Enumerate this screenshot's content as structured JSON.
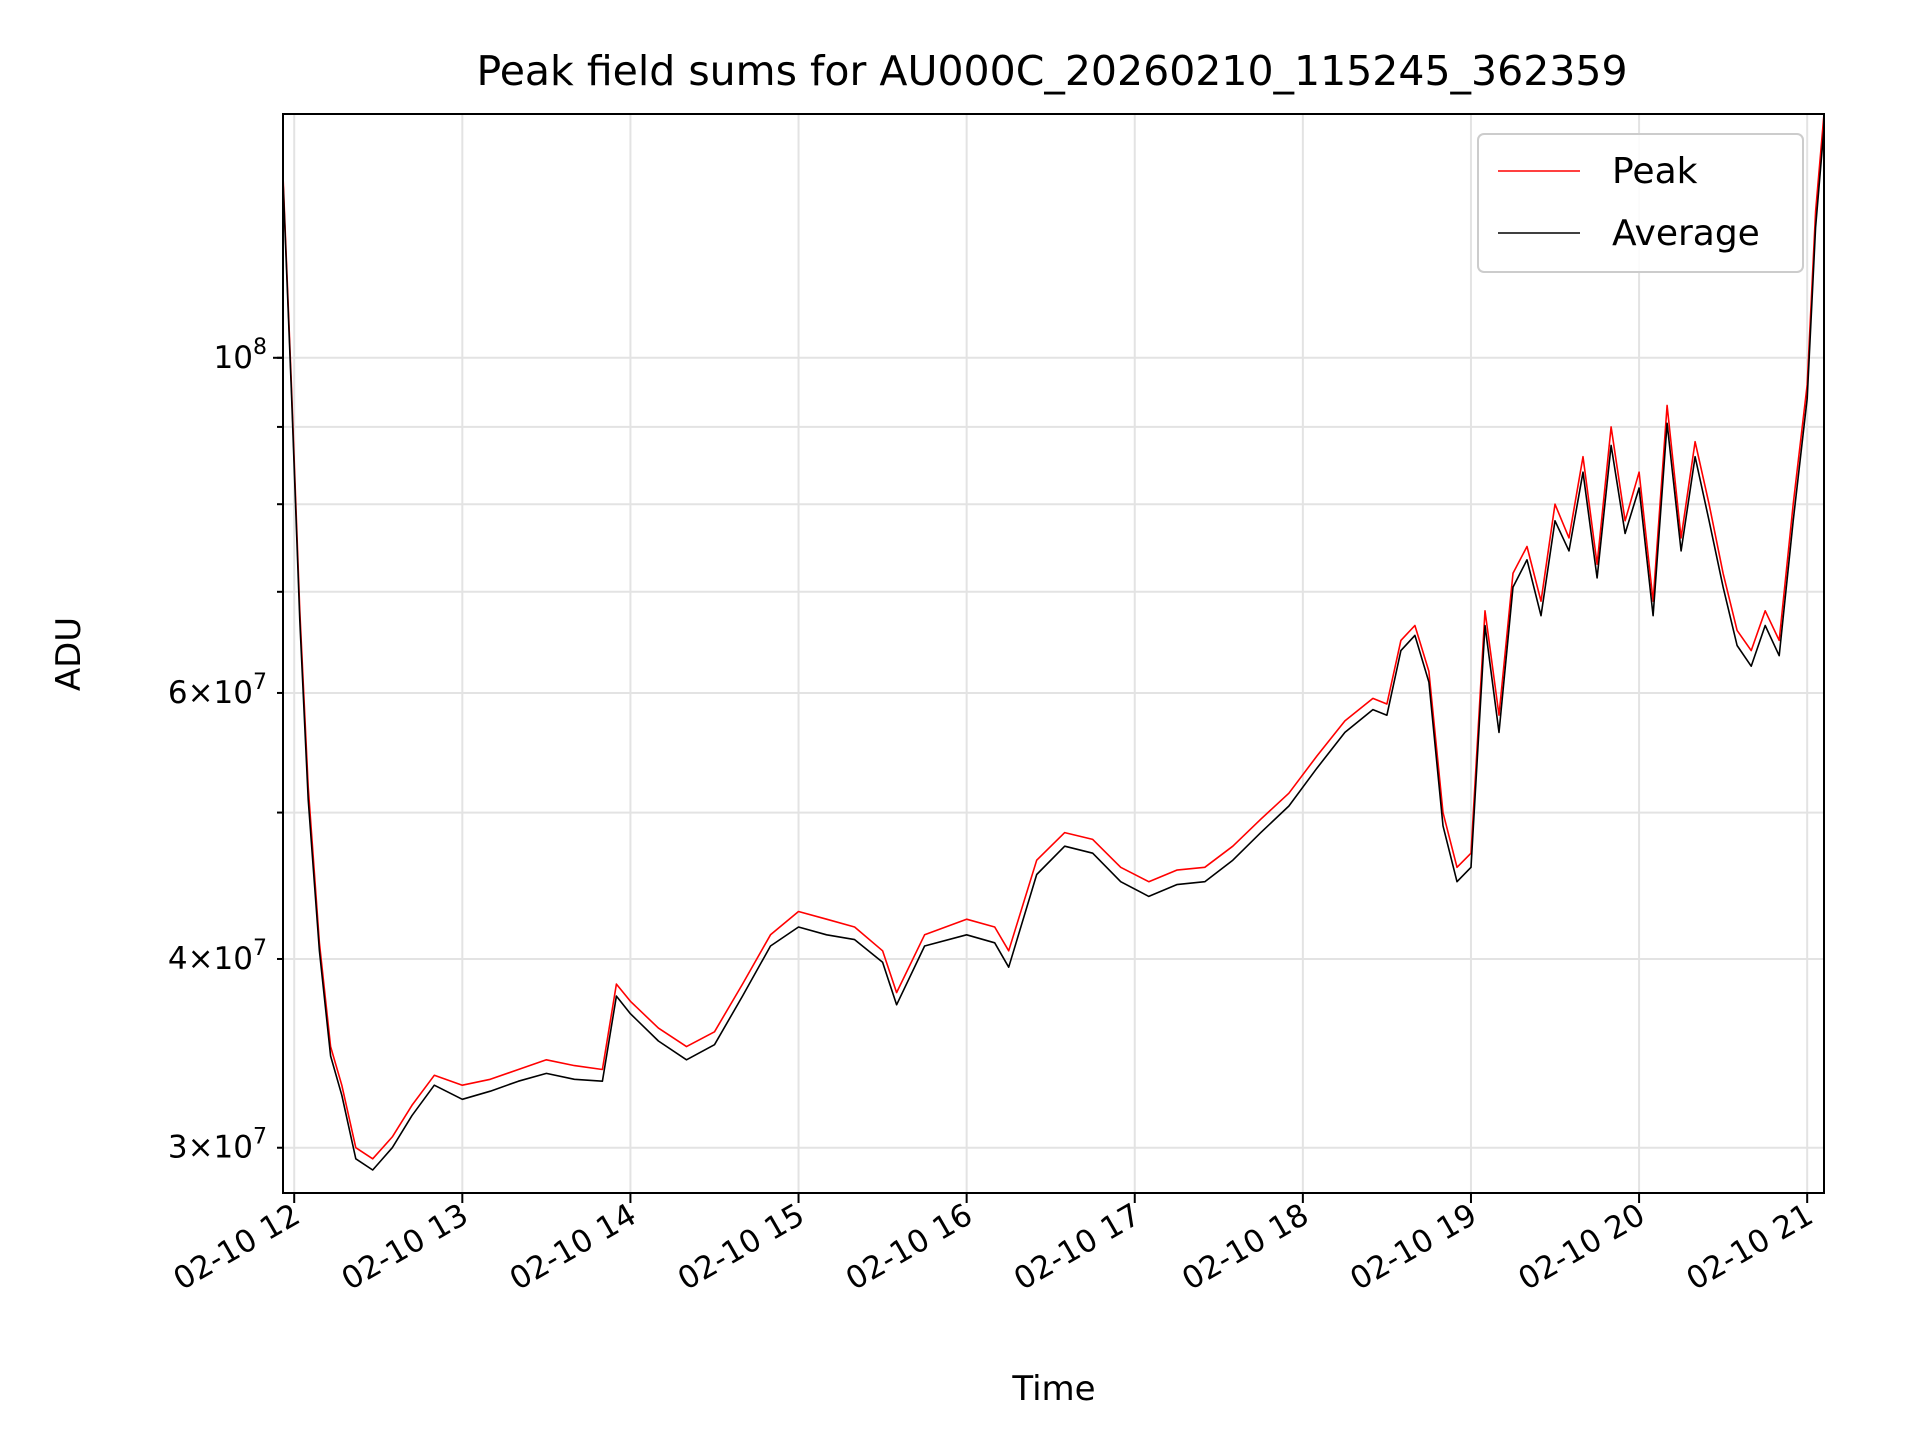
{
  "chart_data": {
    "type": "line",
    "title": "Peak field sums for AU000C_20260210_115245_362359",
    "xlabel": "Time",
    "ylabel": "ADU",
    "yscale": "log",
    "ylim": [
      28000000,
      145000000
    ],
    "xlim": [
      "2026-02-10 11:56",
      "2026-02-10 21:06"
    ],
    "grid": true,
    "legend_position": "top-right",
    "x_ticks": [
      {
        "value": "2026-02-10 12:00",
        "label": "02-10 12"
      },
      {
        "value": "2026-02-10 13:00",
        "label": "02-10 13"
      },
      {
        "value": "2026-02-10 14:00",
        "label": "02-10 14"
      },
      {
        "value": "2026-02-10 15:00",
        "label": "02-10 15"
      },
      {
        "value": "2026-02-10 16:00",
        "label": "02-10 16"
      },
      {
        "value": "2026-02-10 17:00",
        "label": "02-10 17"
      },
      {
        "value": "2026-02-10 18:00",
        "label": "02-10 18"
      },
      {
        "value": "2026-02-10 19:00",
        "label": "02-10 19"
      },
      {
        "value": "2026-02-10 20:00",
        "label": "02-10 20"
      },
      {
        "value": "2026-02-10 21:00",
        "label": "02-10 21"
      }
    ],
    "y_major_ticks": [
      {
        "value": 100000000,
        "base": "10",
        "exp": "8"
      }
    ],
    "y_minor_ticks": [
      {
        "value": 30000000,
        "mantissa": "3",
        "base": "10",
        "exp": "7"
      },
      {
        "value": 40000000,
        "mantissa": "4",
        "base": "10",
        "exp": "7"
      },
      {
        "value": 60000000,
        "mantissa": "6",
        "base": "10",
        "exp": "7"
      }
    ],
    "y_gridlines": [
      30000000,
      40000000,
      50000000,
      60000000,
      70000000,
      80000000,
      90000000,
      100000000
    ],
    "series": [
      {
        "name": "Peak",
        "color": "#ff0000",
        "points": [
          [
            "2026-02-10 11:56",
            132000000
          ],
          [
            "2026-02-10 11:59",
            96000000
          ],
          [
            "2026-02-10 12:02",
            68000000
          ],
          [
            "2026-02-10 12:05",
            52000000
          ],
          [
            "2026-02-10 12:09",
            41000000
          ],
          [
            "2026-02-10 12:13",
            35000000
          ],
          [
            "2026-02-10 12:17",
            33000000
          ],
          [
            "2026-02-10 12:22",
            30000000
          ],
          [
            "2026-02-10 12:28",
            29500000
          ],
          [
            "2026-02-10 12:35",
            30500000
          ],
          [
            "2026-02-10 12:42",
            32000000
          ],
          [
            "2026-02-10 12:50",
            33500000
          ],
          [
            "2026-02-10 13:00",
            33000000
          ],
          [
            "2026-02-10 13:10",
            33300000
          ],
          [
            "2026-02-10 13:20",
            33800000
          ],
          [
            "2026-02-10 13:30",
            34300000
          ],
          [
            "2026-02-10 13:40",
            34000000
          ],
          [
            "2026-02-10 13:50",
            33800000
          ],
          [
            "2026-02-10 13:55",
            38500000
          ],
          [
            "2026-02-10 14:00",
            37500000
          ],
          [
            "2026-02-10 14:10",
            36000000
          ],
          [
            "2026-02-10 14:20",
            35000000
          ],
          [
            "2026-02-10 14:30",
            35800000
          ],
          [
            "2026-02-10 14:40",
            38500000
          ],
          [
            "2026-02-10 14:50",
            41500000
          ],
          [
            "2026-02-10 15:00",
            43000000
          ],
          [
            "2026-02-10 15:10",
            42500000
          ],
          [
            "2026-02-10 15:20",
            42000000
          ],
          [
            "2026-02-10 15:30",
            40500000
          ],
          [
            "2026-02-10 15:35",
            38000000
          ],
          [
            "2026-02-10 15:45",
            41500000
          ],
          [
            "2026-02-10 16:00",
            42500000
          ],
          [
            "2026-02-10 16:10",
            42000000
          ],
          [
            "2026-02-10 16:15",
            40500000
          ],
          [
            "2026-02-10 16:25",
            46500000
          ],
          [
            "2026-02-10 16:35",
            48500000
          ],
          [
            "2026-02-10 16:45",
            48000000
          ],
          [
            "2026-02-10 16:55",
            46000000
          ],
          [
            "2026-02-10 17:05",
            45000000
          ],
          [
            "2026-02-10 17:15",
            45800000
          ],
          [
            "2026-02-10 17:25",
            46000000
          ],
          [
            "2026-02-10 17:35",
            47500000
          ],
          [
            "2026-02-10 17:45",
            49500000
          ],
          [
            "2026-02-10 17:55",
            51500000
          ],
          [
            "2026-02-10 18:05",
            54500000
          ],
          [
            "2026-02-10 18:15",
            57500000
          ],
          [
            "2026-02-10 18:25",
            59500000
          ],
          [
            "2026-02-10 18:30",
            59000000
          ],
          [
            "2026-02-10 18:35",
            65000000
          ],
          [
            "2026-02-10 18:40",
            66500000
          ],
          [
            "2026-02-10 18:45",
            62000000
          ],
          [
            "2026-02-10 18:50",
            50000000
          ],
          [
            "2026-02-10 18:55",
            46000000
          ],
          [
            "2026-02-10 19:00",
            47000000
          ],
          [
            "2026-02-10 19:05",
            68000000
          ],
          [
            "2026-02-10 19:10",
            58000000
          ],
          [
            "2026-02-10 19:15",
            72000000
          ],
          [
            "2026-02-10 19:20",
            75000000
          ],
          [
            "2026-02-10 19:25",
            69000000
          ],
          [
            "2026-02-10 19:30",
            80000000
          ],
          [
            "2026-02-10 19:35",
            76000000
          ],
          [
            "2026-02-10 19:40",
            86000000
          ],
          [
            "2026-02-10 19:45",
            73000000
          ],
          [
            "2026-02-10 19:50",
            90000000
          ],
          [
            "2026-02-10 19:55",
            78000000
          ],
          [
            "2026-02-10 20:00",
            84000000
          ],
          [
            "2026-02-10 20:05",
            69000000
          ],
          [
            "2026-02-10 20:10",
            93000000
          ],
          [
            "2026-02-10 20:15",
            76000000
          ],
          [
            "2026-02-10 20:20",
            88000000
          ],
          [
            "2026-02-10 20:25",
            80000000
          ],
          [
            "2026-02-10 20:30",
            72000000
          ],
          [
            "2026-02-10 20:35",
            66000000
          ],
          [
            "2026-02-10 20:40",
            64000000
          ],
          [
            "2026-02-10 20:45",
            68000000
          ],
          [
            "2026-02-10 20:50",
            65000000
          ],
          [
            "2026-02-10 20:55",
            80000000
          ],
          [
            "2026-02-10 21:00",
            96000000
          ],
          [
            "2026-02-10 21:03",
            125000000
          ],
          [
            "2026-02-10 21:06",
            145000000
          ]
        ]
      },
      {
        "name": "Average",
        "color": "#000000",
        "points": [
          [
            "2026-02-10 11:56",
            131000000
          ],
          [
            "2026-02-10 11:59",
            95000000
          ],
          [
            "2026-02-10 12:02",
            67000000
          ],
          [
            "2026-02-10 12:05",
            51000000
          ],
          [
            "2026-02-10 12:09",
            40500000
          ],
          [
            "2026-02-10 12:13",
            34500000
          ],
          [
            "2026-02-10 12:17",
            32500000
          ],
          [
            "2026-02-10 12:22",
            29500000
          ],
          [
            "2026-02-10 12:28",
            29000000
          ],
          [
            "2026-02-10 12:35",
            30000000
          ],
          [
            "2026-02-10 12:42",
            31500000
          ],
          [
            "2026-02-10 12:50",
            33000000
          ],
          [
            "2026-02-10 13:00",
            32300000
          ],
          [
            "2026-02-10 13:10",
            32700000
          ],
          [
            "2026-02-10 13:20",
            33200000
          ],
          [
            "2026-02-10 13:30",
            33600000
          ],
          [
            "2026-02-10 13:40",
            33300000
          ],
          [
            "2026-02-10 13:50",
            33200000
          ],
          [
            "2026-02-10 13:55",
            37800000
          ],
          [
            "2026-02-10 14:00",
            36800000
          ],
          [
            "2026-02-10 14:10",
            35300000
          ],
          [
            "2026-02-10 14:20",
            34300000
          ],
          [
            "2026-02-10 14:30",
            35100000
          ],
          [
            "2026-02-10 14:40",
            37800000
          ],
          [
            "2026-02-10 14:50",
            40800000
          ],
          [
            "2026-02-10 15:00",
            42000000
          ],
          [
            "2026-02-10 15:10",
            41500000
          ],
          [
            "2026-02-10 15:20",
            41200000
          ],
          [
            "2026-02-10 15:30",
            39800000
          ],
          [
            "2026-02-10 15:35",
            37300000
          ],
          [
            "2026-02-10 15:45",
            40800000
          ],
          [
            "2026-02-10 16:00",
            41500000
          ],
          [
            "2026-02-10 16:10",
            41000000
          ],
          [
            "2026-02-10 16:15",
            39500000
          ],
          [
            "2026-02-10 16:25",
            45500000
          ],
          [
            "2026-02-10 16:35",
            47500000
          ],
          [
            "2026-02-10 16:45",
            47000000
          ],
          [
            "2026-02-10 16:55",
            45000000
          ],
          [
            "2026-02-10 17:05",
            44000000
          ],
          [
            "2026-02-10 17:15",
            44800000
          ],
          [
            "2026-02-10 17:25",
            45000000
          ],
          [
            "2026-02-10 17:35",
            46500000
          ],
          [
            "2026-02-10 17:45",
            48500000
          ],
          [
            "2026-02-10 17:55",
            50500000
          ],
          [
            "2026-02-10 18:05",
            53500000
          ],
          [
            "2026-02-10 18:15",
            56500000
          ],
          [
            "2026-02-10 18:25",
            58500000
          ],
          [
            "2026-02-10 18:30",
            58000000
          ],
          [
            "2026-02-10 18:35",
            64000000
          ],
          [
            "2026-02-10 18:40",
            65500000
          ],
          [
            "2026-02-10 18:45",
            61000000
          ],
          [
            "2026-02-10 18:50",
            49000000
          ],
          [
            "2026-02-10 18:55",
            45000000
          ],
          [
            "2026-02-10 19:00",
            46000000
          ],
          [
            "2026-02-10 19:05",
            66500000
          ],
          [
            "2026-02-10 19:10",
            56500000
          ],
          [
            "2026-02-10 19:15",
            70500000
          ],
          [
            "2026-02-10 19:20",
            73500000
          ],
          [
            "2026-02-10 19:25",
            67500000
          ],
          [
            "2026-02-10 19:30",
            78000000
          ],
          [
            "2026-02-10 19:35",
            74500000
          ],
          [
            "2026-02-10 19:40",
            84000000
          ],
          [
            "2026-02-10 19:45",
            71500000
          ],
          [
            "2026-02-10 19:50",
            87500000
          ],
          [
            "2026-02-10 19:55",
            76500000
          ],
          [
            "2026-02-10 20:00",
            82000000
          ],
          [
            "2026-02-10 20:05",
            67500000
          ],
          [
            "2026-02-10 20:10",
            90500000
          ],
          [
            "2026-02-10 20:15",
            74500000
          ],
          [
            "2026-02-10 20:20",
            86000000
          ],
          [
            "2026-02-10 20:25",
            78000000
          ],
          [
            "2026-02-10 20:30",
            70500000
          ],
          [
            "2026-02-10 20:35",
            64500000
          ],
          [
            "2026-02-10 20:40",
            62500000
          ],
          [
            "2026-02-10 20:45",
            66500000
          ],
          [
            "2026-02-10 20:50",
            63500000
          ],
          [
            "2026-02-10 20:55",
            78000000
          ],
          [
            "2026-02-10 21:00",
            94000000
          ],
          [
            "2026-02-10 21:03",
            122000000
          ],
          [
            "2026-02-10 21:06",
            142000000
          ]
        ]
      }
    ]
  }
}
